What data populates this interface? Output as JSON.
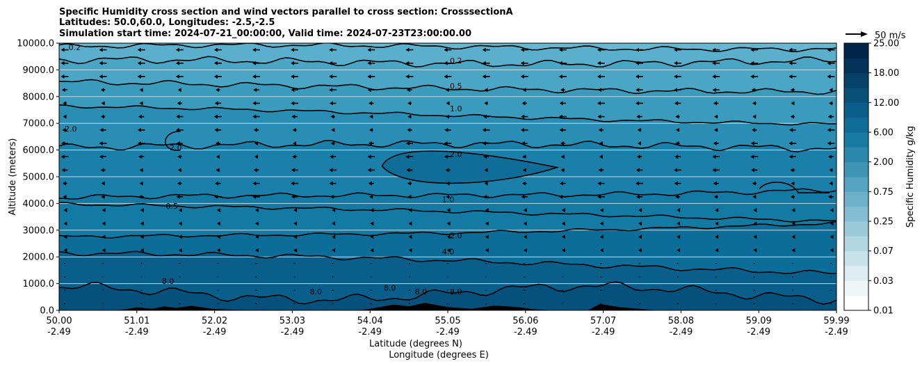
{
  "chart_data": {
    "type": "contour",
    "title": [
      "Specific Humidity cross section and wind vectors parallel to cross section: CrosssectionA",
      "Latitudes: 50.0,60.0, Longitudes: -2.5,-2.5",
      "Simulation start time: 2024-07-21_00:00:00, Valid time: 2024-07-23T23:00:00.00"
    ],
    "ylabel": "Altitude (meters)",
    "xlabel_lat": "Latitude (degrees N)",
    "xlabel_lon": "Longitude (degrees E)",
    "ylim": [
      0,
      10000
    ],
    "yticks": [
      "0.0",
      "1000.0",
      "2000.0",
      "3000.0",
      "4000.0",
      "5000.0",
      "6000.0",
      "7000.0",
      "8000.0",
      "9000.0",
      "10000.0"
    ],
    "xticks_lat": [
      "50.00",
      "51.01",
      "52.02",
      "53.03",
      "54.04",
      "55.05",
      "56.06",
      "57.07",
      "58.08",
      "59.09",
      "59.99"
    ],
    "xticks_lon": [
      "-2.49",
      "-2.49",
      "-2.49",
      "-2.49",
      "-2.49",
      "-2.49",
      "-2.49",
      "-2.49",
      "-2.49",
      "-2.49",
      "-2.49"
    ],
    "contour_levels": [
      "0.1",
      "0.2",
      "0.5",
      "1.0",
      "2.0",
      "4.0",
      "8.0"
    ],
    "contour_labels": [
      {
        "text": "0.2",
        "lat": 55.1,
        "alt": 9350
      },
      {
        "text": "0.5",
        "lat": 55.1,
        "alt": 8400
      },
      {
        "text": "1.0",
        "lat": 55.1,
        "alt": 7550
      },
      {
        "text": "2.0",
        "lat": 55.1,
        "alt": 5850
      },
      {
        "text": "1.0",
        "lat": 55.0,
        "alt": 4150
      },
      {
        "text": "2.0",
        "lat": 55.1,
        "alt": 2800
      },
      {
        "text": "4.0",
        "lat": 55.0,
        "alt": 2200
      },
      {
        "text": "8.0",
        "lat": 55.1,
        "alt": 700
      },
      {
        "text": "0.2",
        "lat": 50.2,
        "alt": 9850
      },
      {
        "text": "2.0",
        "lat": 50.15,
        "alt": 6800
      },
      {
        "text": "2.0",
        "lat": 51.5,
        "alt": 6100
      },
      {
        "text": "0.5",
        "lat": 51.45,
        "alt": 3900
      },
      {
        "text": "8.0",
        "lat": 53.3,
        "alt": 700
      },
      {
        "text": "8.0",
        "lat": 54.25,
        "alt": 850
      },
      {
        "text": "8.0",
        "lat": 54.65,
        "alt": 700
      },
      {
        "text": "8.0",
        "lat": 51.4,
        "alt": 1100
      }
    ],
    "wind_scale_label": "50 m/s",
    "colorbar": {
      "label": "Specific Humidity g/kg",
      "ticks": [
        "0.01",
        "0.03",
        "0.07",
        "0.25",
        "0.75",
        "2.00",
        "6.00",
        "12.00",
        "18.00",
        "25.00"
      ],
      "colors": [
        "#ffffff",
        "#eef6f8",
        "#dcecf1",
        "#c8e2ea",
        "#b2d6e2",
        "#9bcada",
        "#84bdd2",
        "#6cb0c9",
        "#55a3c0",
        "#3f95b6",
        "#2b88ac",
        "#1a7ba2",
        "#0f6d97",
        "#0a5f8a",
        "#08507a",
        "#06416a",
        "#04325a",
        "#02234a"
      ]
    }
  }
}
